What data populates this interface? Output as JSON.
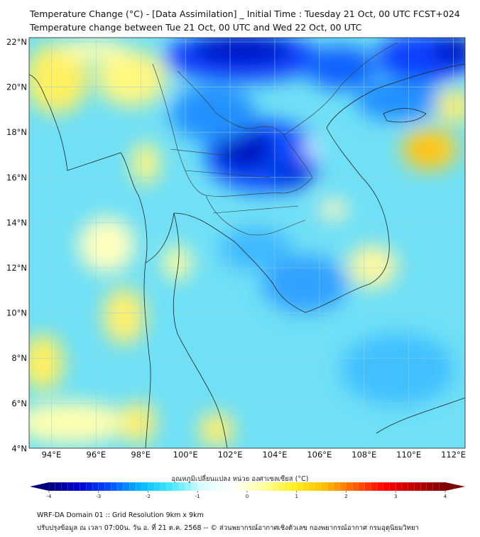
{
  "title_line1": "Temperature Change (°C) - [Data Assimilation] _ Initial Time : Tuesday 21 Oct, 00 UTC FCST+024",
  "title_line2": "Temperature change between Tue 21 Oct, 00 UTC and Wed 22 Oct, 00 UTC",
  "map": {
    "lon_range": [
      93,
      112.5
    ],
    "lat_range": [
      4,
      22
    ],
    "lat_labels": [
      "22°N",
      "20°N",
      "18°N",
      "16°N",
      "14°N",
      "12°N",
      "10°N",
      "8°N",
      "6°N",
      "4°N"
    ],
    "lat_values": [
      22,
      20,
      18,
      16,
      14,
      12,
      10,
      8,
      6,
      4
    ],
    "lon_labels": [
      "94°E",
      "96°E",
      "98°E",
      "100°E",
      "102°E",
      "104°E",
      "106°E",
      "108°E",
      "110°E",
      "112°E"
    ],
    "lon_values": [
      94,
      96,
      98,
      100,
      102,
      104,
      106,
      108,
      110,
      112
    ]
  },
  "colorbar": {
    "label": "อุณหภูมิเปลี่ยนแปลง หน่วย องศาเซลเซียส (°C)",
    "range": [
      -4,
      4
    ],
    "tick_labels": [
      "-4",
      "-3",
      "-2",
      "-1",
      "0",
      "1",
      "2",
      "3",
      "4"
    ],
    "tick_values": [
      -4,
      -3,
      -2,
      -1,
      0,
      1,
      2,
      3,
      4
    ],
    "colors": [
      "#00007f",
      "#0000d0",
      "#0050ff",
      "#00b8ff",
      "#40e8ff",
      "#d8fbff",
      "#ffffff",
      "#ffffa0",
      "#fff020",
      "#ffc000",
      "#ff6000",
      "#ff0000",
      "#c00000",
      "#7f0000"
    ]
  },
  "footer_line1": "WRF-DA Domain 01 :: Grid Resolution 9km x 9km",
  "footer_line2": "ปรับปรุงข้อมูล ณ เวลา 07:00น. วัน อ. ที่ 21 ต.ค. 2568 -- © ส่วนพยากรณ์อากาศเชิงตัวเลข กองพยากรณ์อากาศ กรมอุตุนิยมวิทยา"
}
